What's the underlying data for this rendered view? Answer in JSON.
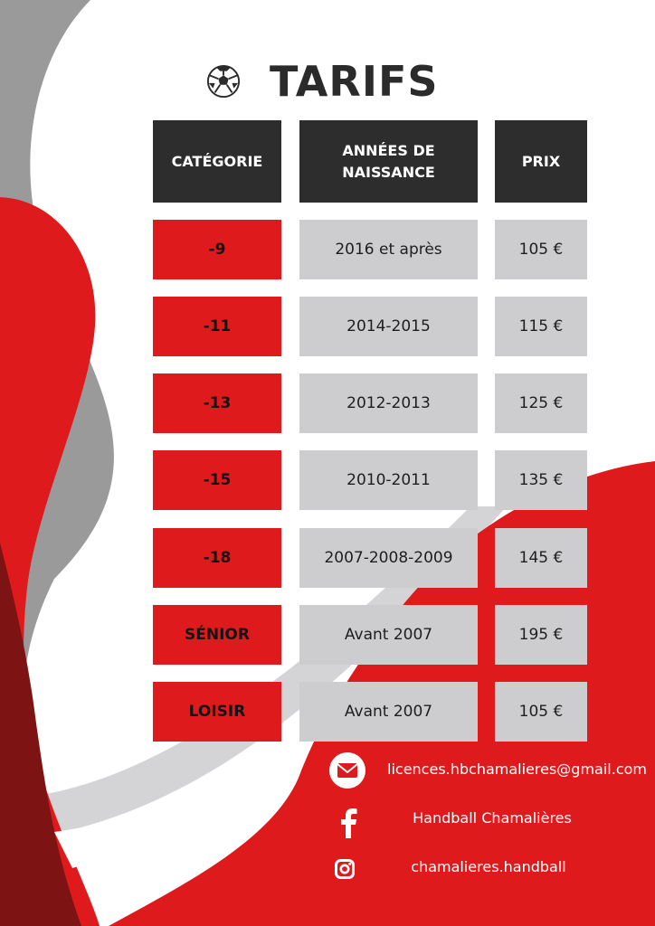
{
  "title": "TARIFS",
  "table": {
    "headers": {
      "category": "CATÉGORIE",
      "years": "ANNÉES DE NAISSANCE",
      "price": "PRIX"
    },
    "rows": [
      {
        "category": "-9",
        "years": "2016 et après",
        "price": "105 €"
      },
      {
        "category": "-11",
        "years": "2014-2015",
        "price": "115 €"
      },
      {
        "category": "-13",
        "years": "2012-2013",
        "price": "125 €"
      },
      {
        "category": "-15",
        "years": "2010-2011",
        "price": "135 €"
      },
      {
        "category": "-18",
        "years": "2007-2008-2009",
        "price": "145 €"
      },
      {
        "category": "SÉNIOR",
        "years": "Avant 2007",
        "price": "195 €"
      },
      {
        "category": "LOISIR",
        "years": "Avant 2007",
        "price": "105 €"
      }
    ]
  },
  "contacts": {
    "email": "licences.hbchamalieres@gmail.com",
    "facebook": "Handball Chamalières",
    "instagram": "chamalieres.handball"
  },
  "icons": [
    "ball-icon",
    "email-icon",
    "facebook-icon",
    "instagram-icon"
  ],
  "colors": {
    "red": "#df1a1c",
    "dark_red": "#7e1313",
    "gray": "#999999",
    "light_gray": "#cdcdd0",
    "dark": "#2d2d2d"
  }
}
